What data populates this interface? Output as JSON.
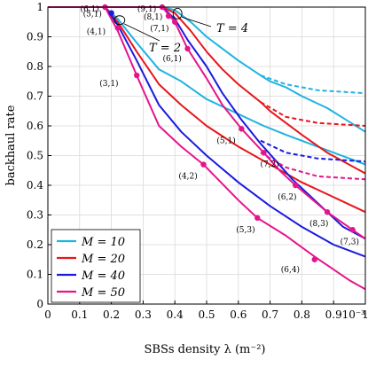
{
  "chart_data": {
    "type": "line",
    "xlabel": "SBSs density λ (m⁻²)",
    "ylabel": "backhaul rate",
    "x_multiplier": "·10⁻³",
    "xlim": [
      0,
      1
    ],
    "ylim": [
      0,
      1
    ],
    "xticks": [
      "0",
      "0.1",
      "0.2",
      "0.3",
      "0.4",
      "0.5",
      "0.6",
      "0.7",
      "0.8",
      "0.9",
      "1"
    ],
    "yticks": [
      "0",
      "0.1",
      "0.2",
      "0.3",
      "0.4",
      "0.5",
      "0.6",
      "0.7",
      "0.8",
      "0.9",
      "1"
    ],
    "legend_position": "bottom-left",
    "colors": {
      "M=10": "#1fb3e0",
      "M=20": "#e8161b",
      "M=40": "#1a1ae0",
      "M=50": "#e6148c"
    },
    "legend": [
      {
        "label": "M = 10",
        "color": "#1fb3e0"
      },
      {
        "label": "M = 20",
        "color": "#e8161b"
      },
      {
        "label": "M = 40",
        "color": "#1a1ae0"
      },
      {
        "label": "M = 50",
        "color": "#e6148c"
      }
    ],
    "series": [
      {
        "group": "T=2",
        "color": "#1fb3e0",
        "style": "solid",
        "x": [
          0,
          0.15,
          0.18,
          0.22,
          0.28,
          0.35,
          0.42,
          0.5,
          0.6,
          0.68,
          0.75,
          0.85,
          0.95,
          1.0
        ],
        "y": [
          1,
          1,
          1,
          0.96,
          0.88,
          0.79,
          0.75,
          0.69,
          0.64,
          0.6,
          0.57,
          0.53,
          0.49,
          0.47
        ]
      },
      {
        "group": "T=2",
        "color": "#e8161b",
        "style": "solid",
        "x": [
          0,
          0.15,
          0.18,
          0.22,
          0.28,
          0.35,
          0.42,
          0.5,
          0.6,
          0.7,
          0.8,
          0.9,
          1.0
        ],
        "y": [
          1,
          1,
          1,
          0.95,
          0.85,
          0.74,
          0.67,
          0.6,
          0.53,
          0.47,
          0.41,
          0.36,
          0.31
        ]
      },
      {
        "group": "T=2",
        "color": "#1a1ae0",
        "style": "solid",
        "x": [
          0,
          0.15,
          0.18,
          0.22,
          0.28,
          0.35,
          0.42,
          0.5,
          0.6,
          0.7,
          0.8,
          0.9,
          1.0
        ],
        "y": [
          1,
          1,
          1,
          0.94,
          0.82,
          0.67,
          0.58,
          0.5,
          0.41,
          0.33,
          0.26,
          0.2,
          0.16
        ]
      },
      {
        "group": "T=2",
        "color": "#e6148c",
        "style": "solid",
        "x": [
          0,
          0.15,
          0.18,
          0.22,
          0.28,
          0.35,
          0.42,
          0.49,
          0.6,
          0.66,
          0.75,
          0.84,
          0.95,
          1.0
        ],
        "y": [
          1,
          1,
          1,
          0.92,
          0.77,
          0.6,
          0.53,
          0.47,
          0.35,
          0.29,
          0.23,
          0.16,
          0.08,
          0.05
        ]
      },
      {
        "group": "T=4",
        "color": "#1fb3e0",
        "style": "solid",
        "x": [
          0,
          0.33,
          0.36,
          0.4,
          0.45,
          0.5,
          0.55,
          0.6,
          0.67,
          0.7,
          0.75,
          0.8,
          0.88,
          1.0
        ],
        "y": [
          1,
          1,
          1,
          0.99,
          0.95,
          0.9,
          0.86,
          0.82,
          0.77,
          0.75,
          0.73,
          0.7,
          0.66,
          0.58
        ]
      },
      {
        "group": "T=4",
        "color": "#e8161b",
        "style": "solid",
        "x": [
          0,
          0.33,
          0.36,
          0.4,
          0.45,
          0.5,
          0.55,
          0.6,
          0.67,
          0.7,
          0.75,
          0.8,
          0.88,
          1.0
        ],
        "y": [
          1,
          1,
          1,
          0.98,
          0.92,
          0.85,
          0.79,
          0.74,
          0.68,
          0.65,
          0.61,
          0.57,
          0.51,
          0.44
        ]
      },
      {
        "group": "T=4",
        "color": "#1a1ae0",
        "style": "solid",
        "x": [
          0,
          0.33,
          0.36,
          0.4,
          0.44,
          0.5,
          0.55,
          0.61,
          0.67,
          0.72,
          0.77,
          0.85,
          0.93,
          1.0
        ],
        "y": [
          1,
          1,
          1,
          0.96,
          0.89,
          0.8,
          0.71,
          0.62,
          0.54,
          0.48,
          0.42,
          0.34,
          0.26,
          0.22
        ]
      },
      {
        "group": "T=4",
        "color": "#e6148c",
        "style": "solid",
        "x": [
          0,
          0.33,
          0.36,
          0.4,
          0.44,
          0.5,
          0.55,
          0.61,
          0.68,
          0.73,
          0.78,
          0.88,
          0.96,
          1.0
        ],
        "y": [
          1,
          1,
          1,
          0.95,
          0.86,
          0.76,
          0.67,
          0.59,
          0.51,
          0.45,
          0.4,
          0.31,
          0.25,
          0.22
        ]
      },
      {
        "group": "limit",
        "color": "#1fb3e0",
        "style": "dashed",
        "x": [
          0.67,
          0.75,
          0.85,
          1.0
        ],
        "y": [
          0.77,
          0.74,
          0.72,
          0.71
        ]
      },
      {
        "group": "limit",
        "color": "#e8161b",
        "style": "dashed",
        "x": [
          0.67,
          0.75,
          0.85,
          1.0
        ],
        "y": [
          0.68,
          0.63,
          0.61,
          0.6
        ]
      },
      {
        "group": "limit",
        "color": "#1a1ae0",
        "style": "dashed",
        "x": [
          0.67,
          0.75,
          0.85,
          1.0
        ],
        "y": [
          0.55,
          0.51,
          0.49,
          0.48
        ]
      },
      {
        "group": "limit",
        "color": "#e6148c",
        "style": "dashed",
        "x": [
          0.67,
          0.75,
          0.85,
          1.0
        ],
        "y": [
          0.51,
          0.46,
          0.43,
          0.42
        ]
      }
    ],
    "markers": [
      {
        "label": "(6,1)",
        "x": 0.18,
        "y": 1.0,
        "color": "#e6148c",
        "label_dx": -28,
        "label_dy": 5
      },
      {
        "label": "(5,1)",
        "x": 0.2,
        "y": 0.98,
        "color": "#1a1ae0",
        "label_dx": -32,
        "label_dy": 4
      },
      {
        "label": "(4,1)",
        "x": 0.22,
        "y": 0.93,
        "color": "#e6148c",
        "label_dx": -35,
        "label_dy": 7
      },
      {
        "label": "(3,1)",
        "x": 0.28,
        "y": 0.77,
        "color": "#e6148c",
        "label_dx": -42,
        "label_dy": 12
      },
      {
        "label": "(9,1)",
        "x": 0.36,
        "y": 1.0,
        "color": "#e6148c",
        "label_dx": -28,
        "label_dy": 5
      },
      {
        "label": "(8,1)",
        "x": 0.38,
        "y": 0.97,
        "color": "#e6148c",
        "label_dx": -28,
        "label_dy": 4
      },
      {
        "label": "(7,1)",
        "x": 0.4,
        "y": 0.95,
        "color": "#e6148c",
        "label_dx": -28,
        "label_dy": 10
      },
      {
        "label": "(6,1)",
        "x": 0.44,
        "y": 0.86,
        "color": "#e6148c",
        "label_dx": -28,
        "label_dy": 14
      },
      {
        "label": "(4,2)",
        "x": 0.49,
        "y": 0.47,
        "color": "#e6148c",
        "label_dx": -28,
        "label_dy": 16
      },
      {
        "label": "(5,1)",
        "x": 0.61,
        "y": 0.59,
        "color": "#e6148c",
        "label_dx": -28,
        "label_dy": 16
      },
      {
        "label": "(7,2)",
        "x": 0.68,
        "y": 0.51,
        "color": "#e6148c",
        "label_dx": -4,
        "label_dy": 16
      },
      {
        "label": "(5,3)",
        "x": 0.66,
        "y": 0.29,
        "color": "#e6148c",
        "label_dx": -24,
        "label_dy": 16
      },
      {
        "label": "(6,2)",
        "x": 0.78,
        "y": 0.4,
        "color": "#e6148c",
        "label_dx": -20,
        "label_dy": 16
      },
      {
        "label": "(8,3)",
        "x": 0.88,
        "y": 0.31,
        "color": "#e6148c",
        "label_dx": -20,
        "label_dy": 16
      },
      {
        "label": "(6,4)",
        "x": 0.84,
        "y": 0.15,
        "color": "#e6148c",
        "label_dx": -38,
        "label_dy": 14
      },
      {
        "label": "(7,3)",
        "x": 0.96,
        "y": 0.25,
        "color": "#e6148c",
        "label_dx": -14,
        "label_dy": 16
      }
    ],
    "annotations": [
      {
        "label": "T = 2",
        "anchor_x": 0.22,
        "anchor_y": 0.95
      },
      {
        "label": "T = 4",
        "anchor_x": 0.4,
        "anchor_y": 0.99
      }
    ]
  }
}
